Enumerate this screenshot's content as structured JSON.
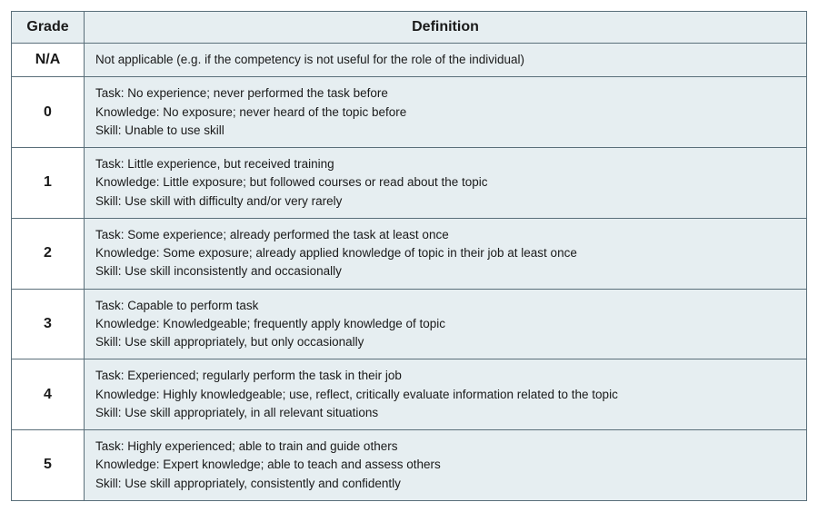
{
  "table": {
    "columns": [
      "Grade",
      "Definition"
    ],
    "header_bg": "#e6eef1",
    "border_color": "#5a6f7a",
    "def_bg": "#e6eef1",
    "grade_bg": "#ffffff",
    "rows": [
      {
        "grade": "N/A",
        "lines": [
          "Not applicable (e.g. if the competency is not useful for the role of the individual)"
        ]
      },
      {
        "grade": "0",
        "lines": [
          "Task: No experience; never performed the task before",
          "Knowledge: No exposure; never heard of the topic before",
          "Skill: Unable to use skill"
        ]
      },
      {
        "grade": "1",
        "lines": [
          "Task: Little experience, but received training",
          "Knowledge: Little exposure; but followed courses or read about the topic",
          "Skill: Use skill with difficulty and/or very rarely"
        ]
      },
      {
        "grade": "2",
        "lines": [
          "Task: Some experience; already performed the task at least once",
          "Knowledge: Some exposure; already applied knowledge of topic in their job at least once",
          "Skill: Use skill inconsistently and occasionally"
        ]
      },
      {
        "grade": "3",
        "lines": [
          "Task: Capable to perform task",
          "Knowledge: Knowledgeable; frequently apply knowledge of topic",
          "Skill: Use skill appropriately, but only occasionally"
        ]
      },
      {
        "grade": "4",
        "lines": [
          "Task: Experienced; regularly perform the task in their job",
          "Knowledge: Highly knowledgeable; use, reflect, critically evaluate information related to the topic",
          "Skill: Use skill appropriately, in all relevant situations"
        ]
      },
      {
        "grade": "5",
        "lines": [
          "Task: Highly experienced; able to train and guide others",
          "Knowledge: Expert knowledge; able to teach and assess others",
          "Skill: Use skill appropriately, consistently and confidently"
        ]
      }
    ]
  }
}
